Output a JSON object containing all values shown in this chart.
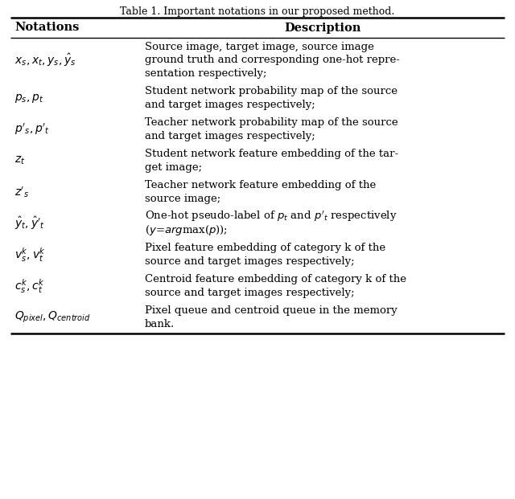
{
  "title": "Table 1. Important notations in our proposed method.",
  "col_headers": [
    "Notations",
    "Description"
  ],
  "rows": [
    {
      "notation": "$x_s, x_t, y_s, \\hat{y}_s$",
      "desc_lines": [
        "Source image, target image, source image",
        "ground truth and corresponding one-hot repre-",
        "sentation respectively;"
      ]
    },
    {
      "notation": "$p_s, p_t$",
      "desc_lines": [
        "Student network probability map of the source",
        "and target images respectively;"
      ]
    },
    {
      "notation": "$p'_s, p'_t$",
      "desc_lines": [
        "Teacher network probability map of the source",
        "and target images respectively;"
      ]
    },
    {
      "notation": "$z_t$",
      "desc_lines": [
        "Student network feature embedding of the tar-",
        "get image;"
      ]
    },
    {
      "notation": "$z'_s$",
      "desc_lines": [
        "Teacher network feature embedding of the",
        "source image;"
      ]
    },
    {
      "notation": "$\\hat{y}_t, \\hat{y}'_t$",
      "desc_lines": [
        "One-hot pseudo-label of $p_t$ and $p'_t$ respectively",
        "($y$=$\\mathit{arg}$max($p$));"
      ]
    },
    {
      "notation": "$v^k_s, v^k_t$",
      "desc_lines": [
        "Pixel feature embedding of category k of the",
        "source and target images respectively;"
      ]
    },
    {
      "notation": "$c^k_s, c^k_t$",
      "desc_lines": [
        "Centroid feature embedding of category k of the",
        "source and target images respectively;"
      ]
    },
    {
      "notation": "$Q_{pixel}, Q_{centroid}$",
      "desc_lines": [
        "Pixel queue and centroid queue in the memory",
        "bank."
      ]
    }
  ],
  "figsize": [
    6.4,
    6.21
  ],
  "dpi": 100,
  "bg_color": "#ffffff",
  "text_color": "#000000",
  "line_color": "#000000",
  "title_fontsize": 9.0,
  "header_fontsize": 10.5,
  "body_fontsize": 9.5,
  "notation_fontsize": 10.0
}
